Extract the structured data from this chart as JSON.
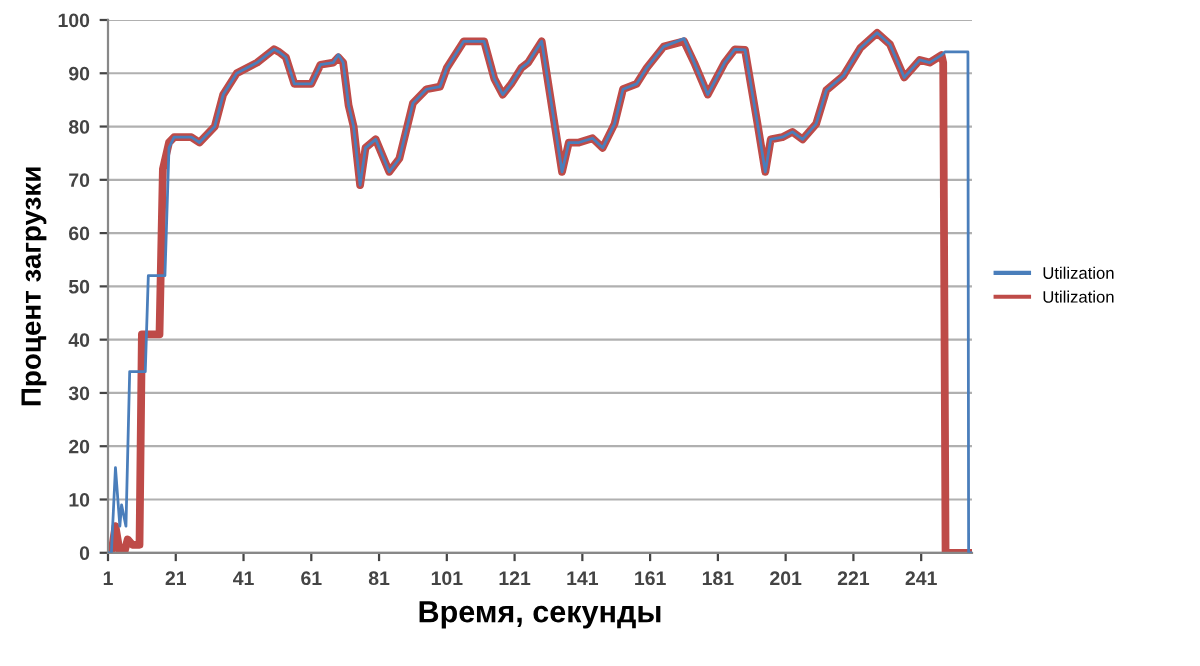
{
  "chart_data": {
    "type": "line",
    "xlabel": "Время, секунды",
    "ylabel": "Процент загрузки",
    "xlim": [
      1,
      256
    ],
    "xticks": [
      1,
      21,
      41,
      61,
      81,
      101,
      121,
      141,
      161,
      181,
      201,
      221,
      241
    ],
    "ylim": [
      0,
      100
    ],
    "yticks": [
      0,
      10,
      20,
      30,
      40,
      50,
      60,
      70,
      80,
      90,
      100
    ],
    "grid": "y",
    "legend": "right",
    "marker": "none",
    "line_style": "solid",
    "series": [
      {
        "name": "Utilization",
        "color": "#4a7ebb",
        "x": [
          1,
          2,
          3.2,
          4.5,
          5,
          6.3,
          7.4,
          12,
          12.9,
          17.8,
          19,
          20.5,
          25.6,
          28,
          32.5,
          35,
          39,
          45,
          50,
          51.5,
          53.5,
          56,
          61,
          63.7,
          67.5,
          69,
          70.4,
          72,
          73.5,
          75.4,
          77,
          80,
          84,
          87,
          91,
          95,
          99,
          101,
          106,
          112,
          115,
          117.5,
          120,
          123,
          125,
          129,
          135,
          137,
          140,
          144,
          147,
          150.5,
          153,
          157,
          160,
          165,
          171,
          174,
          178,
          183,
          186,
          189,
          192.7,
          195,
          196.6,
          200,
          203,
          206,
          210,
          213,
          218,
          223,
          228,
          231.8,
          236,
          240.6,
          243.5,
          247,
          248,
          254.8,
          255,
          256
        ],
        "values": [
          0,
          0,
          16,
          5,
          9,
          5,
          34,
          34,
          52,
          52,
          76,
          78,
          78,
          77,
          80,
          86,
          90,
          92,
          94.5,
          94,
          93,
          88,
          88,
          91.6,
          92,
          93.5,
          92,
          84,
          80,
          69,
          76,
          77.6,
          71.5,
          74,
          84.4,
          87,
          87.5,
          91,
          96,
          96,
          89,
          86,
          88,
          91,
          92,
          96,
          71.5,
          77,
          77,
          77.8,
          76,
          80.5,
          87,
          88,
          91,
          95,
          96.5,
          92,
          86,
          92,
          94.5,
          94.4,
          80.5,
          71.5,
          77.6,
          78,
          79,
          77.6,
          80.5,
          86.8,
          89.5,
          94.7,
          97.6,
          95.4,
          89.2,
          92.5,
          92,
          93.4,
          94,
          94,
          0,
          0
        ]
      },
      {
        "name": "Utilization",
        "color": "#be4b48",
        "x": [
          1,
          2,
          3.2,
          4.5,
          5.8,
          6.8,
          8.2,
          9.5,
          10.3,
          11,
          16.2,
          17.2,
          19,
          20.5,
          25.6,
          28,
          32.5,
          35,
          39,
          45,
          50,
          51.5,
          53.5,
          56,
          61,
          63.7,
          67.5,
          69,
          70.4,
          72,
          73.5,
          75.4,
          77,
          80,
          84,
          87,
          91,
          95,
          99,
          101,
          106,
          112,
          115,
          117.5,
          120,
          123,
          125,
          129,
          135,
          137,
          140,
          144,
          147,
          150.5,
          153,
          157,
          160,
          165,
          171,
          174,
          178,
          183,
          186,
          189,
          192.7,
          195,
          196.6,
          200,
          203,
          206,
          210,
          213,
          218,
          223,
          228,
          231.8,
          236,
          240.6,
          243.5,
          247,
          247.5,
          248.2,
          256
        ],
        "values": [
          0,
          0,
          5,
          0,
          0,
          2.5,
          1.5,
          1.5,
          1.5,
          41,
          41,
          72,
          77,
          78,
          78,
          77,
          80,
          86,
          90,
          92,
          94.5,
          94,
          93,
          88,
          88,
          91.6,
          92,
          93,
          92,
          84,
          80,
          69,
          76,
          77.6,
          71.5,
          74,
          84.4,
          87,
          87.5,
          91,
          96,
          96,
          89,
          86,
          88,
          91,
          92,
          96,
          71.5,
          77,
          77,
          77.8,
          76,
          80.5,
          87,
          88,
          91,
          95,
          96,
          92,
          86,
          92,
          94.5,
          94.4,
          80.5,
          71.5,
          77.6,
          78,
          79,
          77.6,
          80.5,
          86.8,
          89.5,
          94.7,
          97.6,
          95.4,
          89.2,
          92.5,
          92,
          93.4,
          92,
          0,
          0
        ]
      }
    ]
  }
}
